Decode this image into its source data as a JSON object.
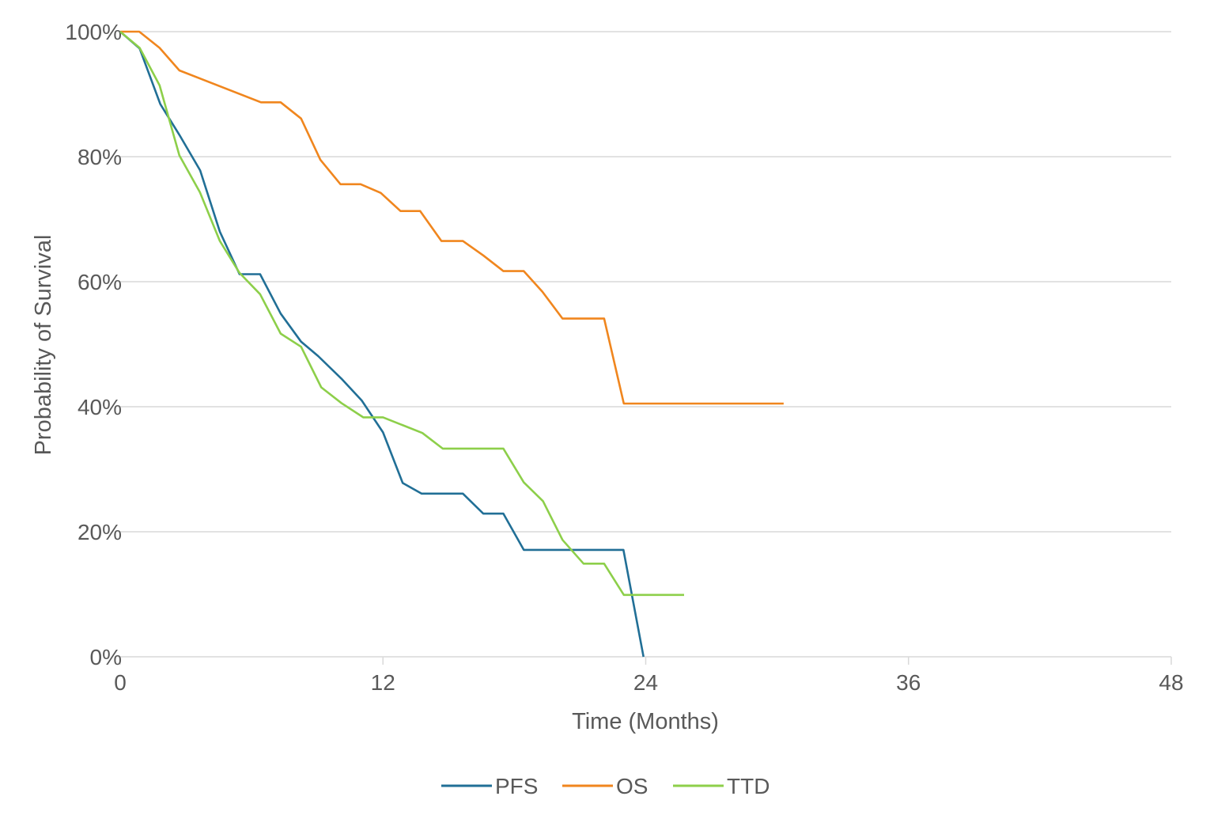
{
  "chart_data": {
    "type": "line",
    "title": "",
    "xlabel": "Time (Months)",
    "ylabel": "Probability of Survival",
    "xlim": [
      0,
      48
    ],
    "ylim": [
      0,
      100
    ],
    "x_ticks": [
      "0",
      "12",
      "24",
      "36",
      "48"
    ],
    "x_tick_values": [
      0,
      12,
      24,
      36,
      48
    ],
    "y_ticks": [
      "0%",
      "20%",
      "40%",
      "60%",
      "80%",
      "100%"
    ],
    "y_tick_values": [
      0,
      20,
      40,
      60,
      80,
      100
    ],
    "grid": "horizontal",
    "legend_position": "bottom",
    "series": [
      {
        "name": "PFS",
        "color": "#216f96",
        "x": [
          0,
          0.89,
          1.83,
          2.7,
          3.65,
          4.55,
          5.45,
          6.39,
          7.33,
          8.26,
          9.04,
          10.1,
          11.03,
          12.0,
          12.9,
          13.76,
          15.65,
          16.58,
          17.5,
          18.43,
          22.98,
          23.9
        ],
        "y": [
          100,
          97.3,
          88.4,
          83.5,
          77.8,
          68.0,
          61.2,
          61.2,
          54.9,
          50.4,
          48.1,
          44.5,
          41.0,
          35.9,
          27.8,
          26.1,
          26.1,
          22.9,
          22.9,
          17.1,
          17.1,
          0
        ]
      },
      {
        "name": "OS",
        "color": "#f0861e",
        "x": [
          0,
          0.87,
          1.8,
          2.7,
          6.43,
          7.33,
          8.26,
          9.14,
          10.06,
          10.98,
          11.9,
          12.8,
          13.7,
          14.67,
          15.65,
          16.58,
          17.5,
          18.43,
          19.28,
          20.2,
          22.1,
          23.0,
          30.3
        ],
        "y": [
          100,
          100,
          97.4,
          93.8,
          88.7,
          88.7,
          86.1,
          79.5,
          75.6,
          75.6,
          74.2,
          71.3,
          71.3,
          66.5,
          66.5,
          64.2,
          61.7,
          61.7,
          58.4,
          54.1,
          54.1,
          40.5,
          40.5
        ]
      },
      {
        "name": "TTD",
        "color": "#8dcf4a",
        "x": [
          0,
          0.89,
          1.8,
          2.7,
          3.64,
          4.55,
          5.45,
          6.39,
          7.33,
          8.26,
          9.18,
          10.1,
          11.1,
          12.0,
          13.8,
          14.73,
          17.5,
          18.43,
          19.31,
          20.2,
          21.16,
          22.1,
          23.0,
          25.75
        ],
        "y": [
          100,
          97.4,
          91.4,
          80.2,
          74.3,
          66.5,
          61.4,
          58.0,
          51.7,
          49.6,
          43.1,
          40.6,
          38.3,
          38.3,
          35.8,
          33.3,
          33.3,
          27.9,
          24.9,
          18.7,
          14.9,
          14.9,
          9.9,
          9.9
        ]
      }
    ]
  }
}
